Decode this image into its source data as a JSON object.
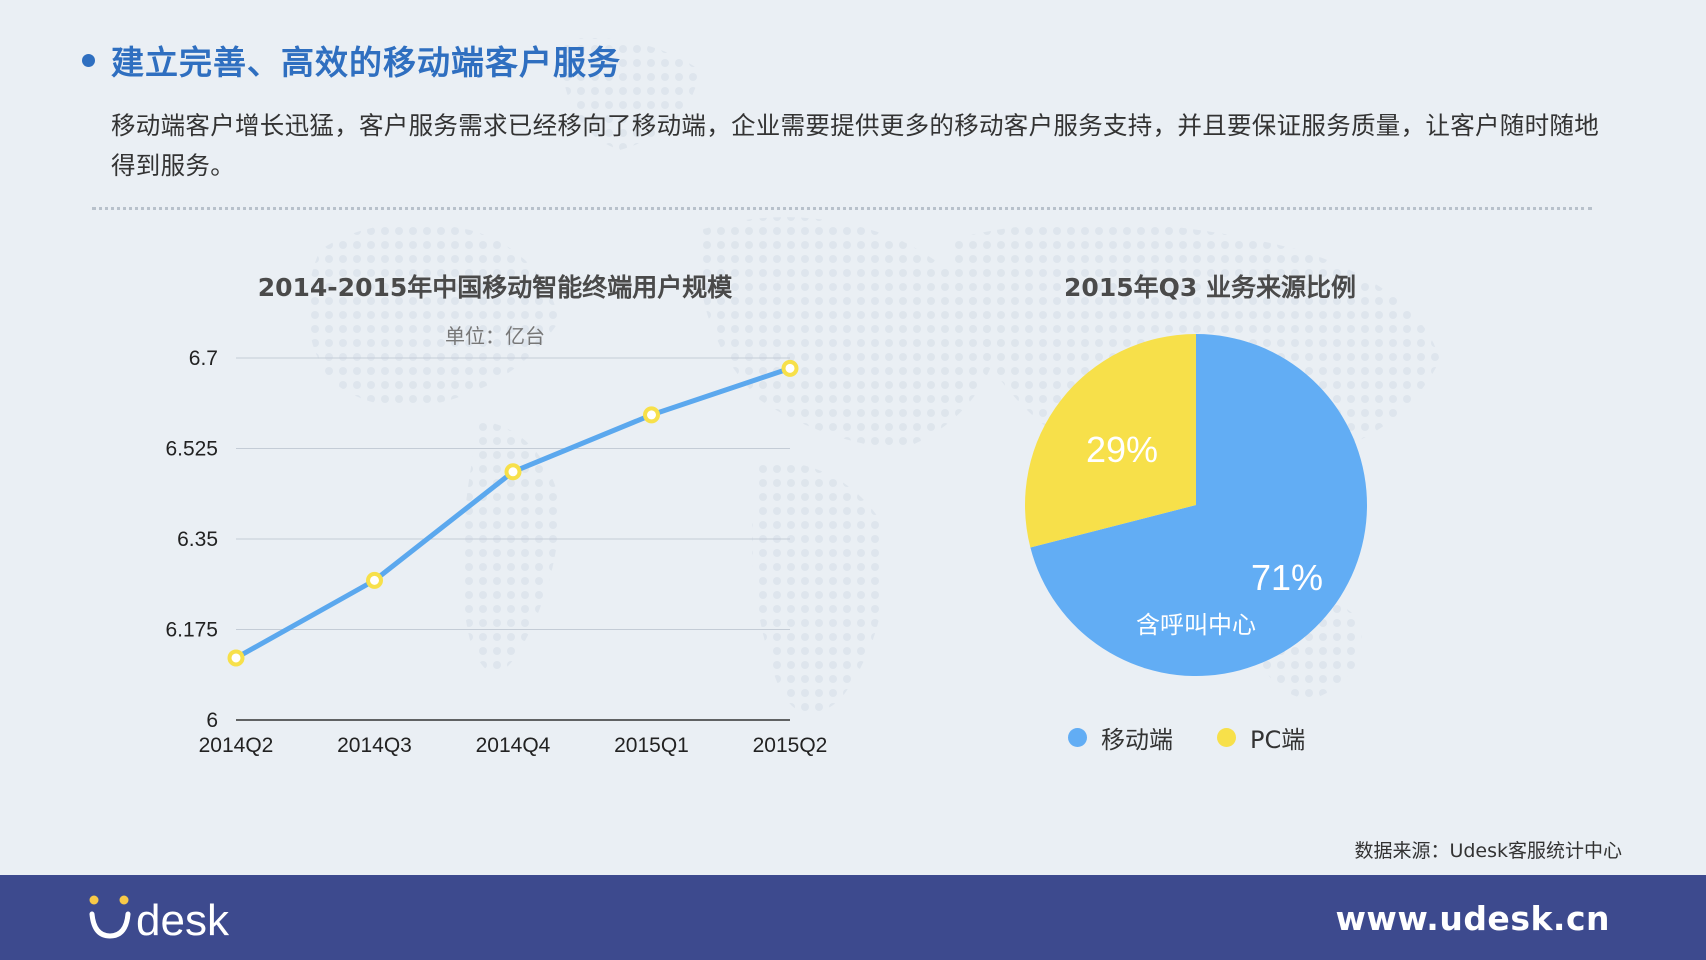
{
  "header": {
    "title": "建立完善、高效的移动端客户服务",
    "intro": "移动端客户增长迅猛，客户服务需求已经移向了移动端，企业需要提供更多的移动客户服务支持，并且要保证服务质量，让客户随时随地得到服务。"
  },
  "chart_data": [
    {
      "type": "line",
      "title": "2014-2015年中国移动智能终端用户规模",
      "subtitle": "单位：亿台",
      "x": [
        "2014Q2",
        "2014Q3",
        "2014Q4",
        "2015Q1",
        "2015Q2"
      ],
      "series": [
        {
          "values": [
            6.12,
            6.27,
            6.48,
            6.59,
            6.68
          ],
          "color": "#5ba8ee",
          "marker_color": "#f7e04a"
        }
      ],
      "ylim": [
        6,
        6.7
      ],
      "yticks": [
        "6",
        "6.175",
        "6.35",
        "6.525",
        "6.7"
      ],
      "grid": true
    },
    {
      "type": "pie",
      "title": "2015年Q3 业务来源比例",
      "slices": [
        {
          "label": "移动端",
          "value": 71,
          "display": "71%",
          "note": "含呼叫中心",
          "color": "#62adf4"
        },
        {
          "label": "PC端",
          "value": 29,
          "display": "29%",
          "color": "#f7e04a"
        }
      ],
      "legend_position": "bottom"
    }
  ],
  "source": "数据来源：Udesk客服统计中心",
  "footer": {
    "logo_text": "Udesk",
    "website": "www.udesk.cn",
    "bg_color": "#3d4a8e"
  }
}
